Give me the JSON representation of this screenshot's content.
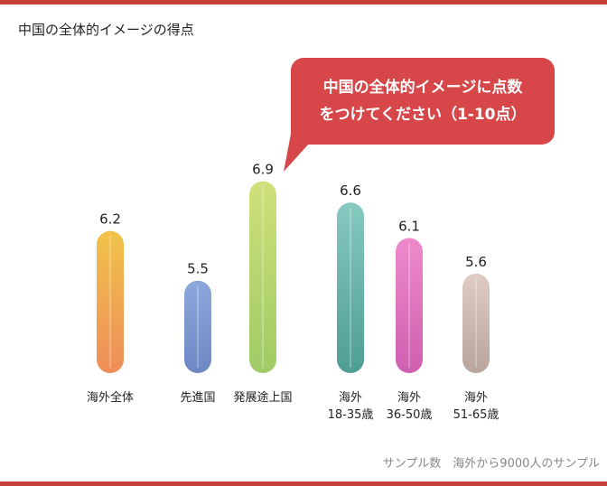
{
  "title": "中国の全体的イメージの得点",
  "callout": {
    "line1": "中国の全体的イメージに点数",
    "line2": "をつけてください（1-10点）"
  },
  "footer_note": "サンプル数　海外から9000人のサンプル",
  "colors": {
    "accent": "#c8403a",
    "callout_bg": "#d7474a"
  },
  "chart_data": {
    "type": "bar",
    "title": "中国の全体的イメージの得点",
    "categories": [
      [
        "海外全体"
      ],
      [
        "先進国"
      ],
      [
        "発展途上国"
      ],
      [
        "海外",
        "18-35歳"
      ],
      [
        "海外",
        "36-50歳"
      ],
      [
        "海外",
        "51-65歳"
      ]
    ],
    "values": [
      6.2,
      5.5,
      6.9,
      6.6,
      6.1,
      5.6
    ],
    "value_labels": [
      "6.2",
      "5.5",
      "6.9",
      "6.6",
      "6.1",
      "5.6"
    ],
    "bar_colors": [
      [
        "#f0c34a",
        "#ef8d5a"
      ],
      [
        "#8ea8dc",
        "#6e87c4"
      ],
      [
        "#cfe07a",
        "#9fcb66"
      ],
      [
        "#86c9c0",
        "#4e9e93"
      ],
      [
        "#ee8acb",
        "#cf5fb0"
      ],
      [
        "#e0ccc4",
        "#b8a49a"
      ]
    ],
    "ylim": [
      0,
      10
    ],
    "grid": false
  }
}
